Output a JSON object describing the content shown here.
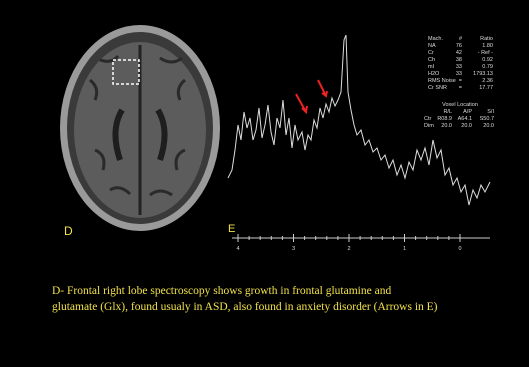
{
  "labels": {
    "d": "D",
    "e": "E"
  },
  "caption": {
    "line1": "D- Frontal right lobe spectroscopy shows growth in frontal glutamine and",
    "line2": "glutamate (Glx), found usualy in ASD, also found in anxiety disorder (Arrows in E)"
  },
  "metrics": {
    "rows": [
      [
        "Mach.",
        "#",
        "Ratio"
      ],
      [
        "NA",
        "76",
        "1.80"
      ],
      [
        "Cr",
        "42",
        "- Ref -"
      ],
      [
        "Ch",
        "38",
        "0.92"
      ],
      [
        "mI",
        "33",
        "0.79"
      ],
      [
        "H2O",
        "33",
        "1793.13"
      ],
      [
        "RMS Noise",
        "=",
        "2.36"
      ],
      [
        "Cr SNR",
        "=",
        "17.77"
      ]
    ]
  },
  "voxel": {
    "title": "Voxel Location",
    "rows": [
      [
        "",
        "R/L",
        "A/P",
        "S/I"
      ],
      [
        "Ctr",
        "R08.9",
        "A64.1",
        "S50.7"
      ],
      [
        "Dim",
        "20.0",
        "20.0",
        "20.0"
      ]
    ]
  },
  "ppm_axis": {
    "labels": [
      "4",
      "3",
      "2",
      "1",
      "0"
    ]
  }
}
